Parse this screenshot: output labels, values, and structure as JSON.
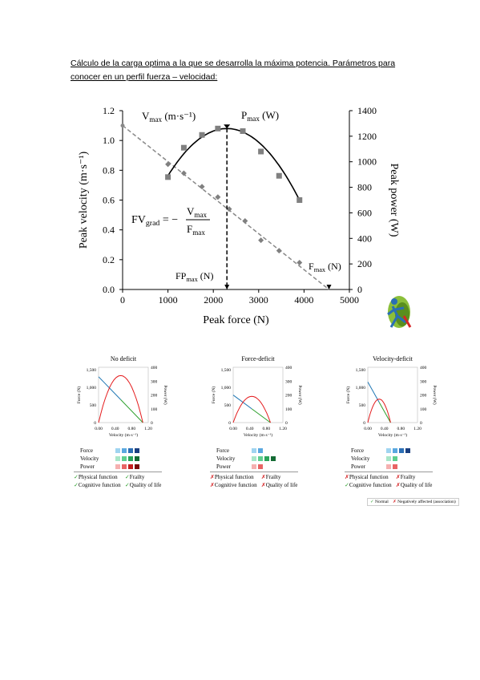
{
  "heading": {
    "line1": "Cálculo de la carga optima a la que se desarrolla la máxima potencia. Parámetros para",
    "line2": "conocer en un perfil fuerza – velocidad:"
  },
  "main_chart": {
    "chart_data": {
      "type": "scatter",
      "xlabel": "Peak force (N)",
      "ylabel": "Peak velocity (m·s⁻¹)",
      "y2label": "Peak power (W)",
      "x_ticks": [
        "0",
        "1000",
        "2000",
        "3000",
        "4000",
        "5000"
      ],
      "y_ticks": [
        "0.0",
        "0.2",
        "0.4",
        "0.6",
        "0.8",
        "1.0",
        "1.2"
      ],
      "y2_ticks": [
        "0",
        "200",
        "400",
        "600",
        "800",
        "1000",
        "1200",
        "1400"
      ],
      "xlim": [
        0,
        5000
      ],
      "ylim": [
        0,
        1.2
      ],
      "y2lim": [
        0,
        1400
      ],
      "series": [
        {
          "points": [
            [
              1000,
              0.84
            ],
            [
              1350,
              0.78
            ],
            [
              1750,
              0.69
            ],
            [
              2100,
              0.62
            ],
            [
              2350,
              0.54
            ],
            [
              2700,
              0.46
            ],
            [
              3050,
              0.33
            ],
            [
              3450,
              0.26
            ],
            [
              3900,
              0.18
            ]
          ],
          "color": "#808080",
          "marker": "diamond",
          "fit_line": [
            [
              0,
              1.1
            ],
            [
              4550,
              0
            ]
          ]
        },
        {
          "points": [
            [
              1000,
              880
            ],
            [
              1350,
              1110
            ],
            [
              1750,
              1210
            ],
            [
              2100,
              1260
            ],
            [
              2650,
              1240
            ],
            [
              3050,
              1080
            ],
            [
              3450,
              890
            ],
            [
              3900,
              700
            ]
          ],
          "color": "#808080",
          "marker": "square",
          "axis": "right"
        }
      ],
      "annotations": {
        "vmax": "V",
        "vmax_sub": "max",
        "vmax_unit": "(m·s⁻¹)",
        "pmax": "P",
        "pmax_sub": "max",
        "pmax_unit": "(W)",
        "fv_grad": "FV",
        "fv_grad_sub": "grad",
        "eq": "= −",
        "num": "V",
        "num_sub": "max",
        "den": "F",
        "den_sub": "max",
        "fpmax": "FP",
        "fpmax_sub": "max",
        "fpmax_unit": "(N)",
        "fmax": "F",
        "fmax_sub": "max",
        "fmax_unit": "(N)"
      }
    }
  },
  "small_charts": [
    {
      "title": "No deficit",
      "left_ticks": [
        "1,500",
        "1,000",
        "500",
        "0"
      ],
      "right_ticks": [
        "400",
        "300",
        "200",
        "100",
        "0"
      ],
      "x_ticks": [
        "0.00",
        "0.40",
        "0.80",
        "1.20"
      ],
      "xlabel": "Velocity (m·s⁻¹)",
      "ylabel_left": "Force (N)",
      "ylabel_right": "Power (W)",
      "line": {
        "f0": 1300,
        "v0": 1.07
      },
      "power_peak": 340
    },
    {
      "title": "Force-deficit",
      "left_ticks": [
        "1,500",
        "1,000",
        "500",
        "0"
      ],
      "right_ticks": [
        "400",
        "300",
        "200",
        "100",
        "0"
      ],
      "x_ticks": [
        "0.00",
        "0.40",
        "0.80",
        "1.20"
      ],
      "xlabel": "Velocity (m·s⁻¹)",
      "ylabel_left": "Force (N)",
      "ylabel_right": "Power (W)",
      "line": {
        "f0": 780,
        "v0": 0.9
      },
      "power_peak": 190
    },
    {
      "title": "Velocity-deficit",
      "left_ticks": [
        "1,500",
        "1,000",
        "500",
        "0"
      ],
      "right_ticks": [
        "400",
        "300",
        "200",
        "100",
        "0"
      ],
      "x_ticks": [
        "0.00",
        "0.40",
        "0.80",
        "1.20"
      ],
      "xlabel": "Velocity (m·s⁻¹)",
      "ylabel_left": "Force (N)",
      "ylabel_right": "Power (W)",
      "line": {
        "f0": 1150,
        "v0": 0.55
      },
      "power_peak": 170
    }
  ],
  "legends": [
    {
      "rows": [
        {
          "label": "Force",
          "colors": [
            "#9fd4f0",
            "#5aa8e0",
            "#2c6fb5",
            "#1a3f80"
          ]
        },
        {
          "label": "Velocity",
          "colors": [
            "#a8e6c8",
            "#5fcf8f",
            "#2aa45a",
            "#146b34"
          ]
        },
        {
          "label": "Power",
          "colors": [
            "#f5b0b0",
            "#e86464",
            "#c41e1e",
            "#7a0a0a"
          ]
        }
      ],
      "status": [
        [
          "Physical function",
          "Frailty"
        ],
        [
          "Cognitive function",
          "Quality of life"
        ]
      ],
      "marks": [
        [
          "ok",
          "ok"
        ],
        [
          "ok",
          "ok"
        ]
      ]
    },
    {
      "rows": [
        {
          "label": "Force",
          "colors": [
            "#9fd4f0",
            "#5aa8e0"
          ]
        },
        {
          "label": "Velocity",
          "colors": [
            "#a8e6c8",
            "#5fcf8f",
            "#2aa45a",
            "#146b34"
          ]
        },
        {
          "label": "Power",
          "colors": [
            "#f5b0b0",
            "#e86464"
          ]
        }
      ],
      "status": [
        [
          "Physical function",
          "Frailty"
        ],
        [
          "Cognitive function",
          "Quality of life"
        ]
      ],
      "marks": [
        [
          "bad",
          "bad"
        ],
        [
          "bad",
          "bad"
        ]
      ]
    },
    {
      "rows": [
        {
          "label": "Force",
          "colors": [
            "#9fd4f0",
            "#5aa8e0",
            "#2c6fb5",
            "#1a3f80"
          ]
        },
        {
          "label": "Velocity",
          "colors": [
            "#a8e6c8",
            "#5fcf8f"
          ]
        },
        {
          "label": "Power",
          "colors": [
            "#f5b0b0",
            "#e86464"
          ]
        }
      ],
      "status": [
        [
          "Physical function",
          "Frailty"
        ],
        [
          "Cognitive function",
          "Quality of life"
        ]
      ],
      "marks": [
        [
          "bad",
          "bad"
        ],
        [
          "ok",
          "bad"
        ]
      ]
    }
  ],
  "footnote": {
    "normal": "Normal",
    "negative": "Negatively affected (association)"
  },
  "colors": {
    "check": "#2ca02c",
    "cross": "#d62728",
    "force_line": "#1f77b4",
    "velocity_line": "#2ca02c",
    "power_curve": "#e41a1c"
  }
}
